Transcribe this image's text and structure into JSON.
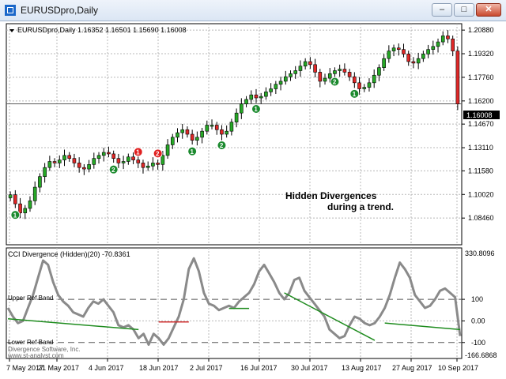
{
  "window": {
    "title": "EURUSDpro,Daily",
    "buttons": {
      "minimize": "–",
      "maximize": "□",
      "close": "✕"
    }
  },
  "price_panel": {
    "header": "EURUSDpro,Daily  1.16352 1.16501 1.15690 1.16008",
    "current_price": "1.16008",
    "annotation_line1": "Hidden Divergences",
    "annotation_line2": "during a trend.",
    "markers": [
      {
        "label": "1",
        "color": "#1b8a2e",
        "index": 1
      },
      {
        "label": "2",
        "color": "#1b8a2e",
        "index": 21
      },
      {
        "label": "1",
        "color": "#e02020",
        "index": 26
      },
      {
        "label": "2",
        "color": "#e02020",
        "index": 30
      },
      {
        "label": "1",
        "color": "#1b8a2e",
        "index": 37
      },
      {
        "label": "2",
        "color": "#1b8a2e",
        "index": 43
      },
      {
        "label": "1",
        "color": "#1b8a2e",
        "index": 50
      },
      {
        "label": "2",
        "color": "#1b8a2e",
        "index": 66
      },
      {
        "label": "1",
        "color": "#1b8a2e",
        "index": 70
      }
    ]
  },
  "indicator_panel": {
    "header": "CCI Divergence (Hidden)(20) -70.8361",
    "upper_band_label": "Upper Ref Band",
    "lower_band_label": "Lower Ref Band",
    "copyright_line1": "Divergence Software, Inc.",
    "copyright_line2": "www.st-analyst.com",
    "max_label": "330.8096",
    "min_label": "-166.6868"
  },
  "chart_data": [
    {
      "type": "candlestick",
      "title": "EURUSDpro,Daily",
      "ylim": [
        1.068,
        1.212
      ],
      "yticks": [
        "1.20880",
        "1.19320",
        "1.17760",
        "1.16200",
        "1.14670",
        "1.13110",
        "1.11580",
        "1.10020",
        "1.08460"
      ],
      "ytick_values": [
        1.2088,
        1.1932,
        1.1776,
        1.162,
        1.1467,
        1.1311,
        1.1158,
        1.1002,
        1.0846
      ],
      "close": [
        1.1,
        1.094,
        1.088,
        1.091,
        1.096,
        1.105,
        1.112,
        1.118,
        1.122,
        1.121,
        1.123,
        1.126,
        1.124,
        1.121,
        1.118,
        1.117,
        1.12,
        1.124,
        1.126,
        1.128,
        1.127,
        1.124,
        1.121,
        1.122,
        1.125,
        1.123,
        1.121,
        1.118,
        1.119,
        1.121,
        1.12,
        1.126,
        1.133,
        1.138,
        1.141,
        1.143,
        1.14,
        1.136,
        1.138,
        1.142,
        1.146,
        1.146,
        1.143,
        1.14,
        1.142,
        1.148,
        1.154,
        1.16,
        1.163,
        1.166,
        1.164,
        1.165,
        1.168,
        1.17,
        1.173,
        1.175,
        1.178,
        1.18,
        1.182,
        1.185,
        1.188,
        1.186,
        1.181,
        1.175,
        1.177,
        1.18,
        1.182,
        1.183,
        1.181,
        1.178,
        1.174,
        1.17,
        1.171,
        1.174,
        1.179,
        1.184,
        1.19,
        1.195,
        1.197,
        1.196,
        1.193,
        1.188,
        1.187,
        1.19,
        1.193,
        1.196,
        1.198,
        1.201,
        1.205,
        1.203,
        1.195,
        1.16
      ],
      "xticks": [
        "7 May 2017",
        "21 May 2017",
        "4 Jun 2017",
        "18 Jun 2017",
        "2 Jul 2017",
        "16 Jul 2017",
        "30 Jul 2017",
        "13 Aug 2017",
        "27 Aug 2017",
        "10 Sep 2017"
      ],
      "annotations": [
        "Hidden Divergences",
        "during a trend."
      ]
    },
    {
      "type": "line",
      "title": "CCI Divergence (Hidden)(20) -70.8361",
      "ylim": [
        -166.6868,
        330.8096
      ],
      "yticks": [
        "100",
        "0.00",
        "-100"
      ],
      "ytick_values": [
        100,
        0,
        -100
      ],
      "reference_bands": {
        "upper": 100,
        "lower": -100
      },
      "values": [
        60,
        20,
        -10,
        0,
        60,
        120,
        200,
        280,
        260,
        180,
        120,
        90,
        70,
        40,
        30,
        20,
        60,
        90,
        80,
        100,
        70,
        40,
        -20,
        -30,
        -20,
        -40,
        -80,
        -60,
        -110,
        -60,
        -80,
        -110,
        -80,
        -30,
        20,
        100,
        240,
        290,
        230,
        130,
        80,
        70,
        50,
        60,
        70,
        60,
        90,
        110,
        130,
        170,
        230,
        260,
        220,
        180,
        130,
        100,
        130,
        190,
        200,
        140,
        110,
        80,
        50,
        20,
        -40,
        -60,
        -80,
        -70,
        -20,
        20,
        10,
        -10,
        -20,
        -10,
        20,
        60,
        120,
        200,
        270,
        240,
        200,
        120,
        90,
        60,
        70,
        100,
        140,
        150,
        130,
        110,
        -70
      ],
      "divergence_lines": [
        {
          "color": "#1f8c1f",
          "from_index": 0,
          "to_index": 26,
          "values": [
            10,
            -40
          ]
        },
        {
          "color": "#d03030",
          "from_index": 30,
          "to_index": 36,
          "values": [
            -5,
            -5
          ]
        },
        {
          "color": "#1f8c1f",
          "from_index": 44,
          "to_index": 48,
          "values": [
            58,
            58
          ]
        },
        {
          "color": "#1f8c1f",
          "from_index": 55,
          "to_index": 73,
          "values": [
            130,
            -90
          ]
        },
        {
          "color": "#1f8c1f",
          "from_index": 75,
          "to_index": 90,
          "values": [
            -10,
            -40
          ]
        }
      ]
    }
  ]
}
